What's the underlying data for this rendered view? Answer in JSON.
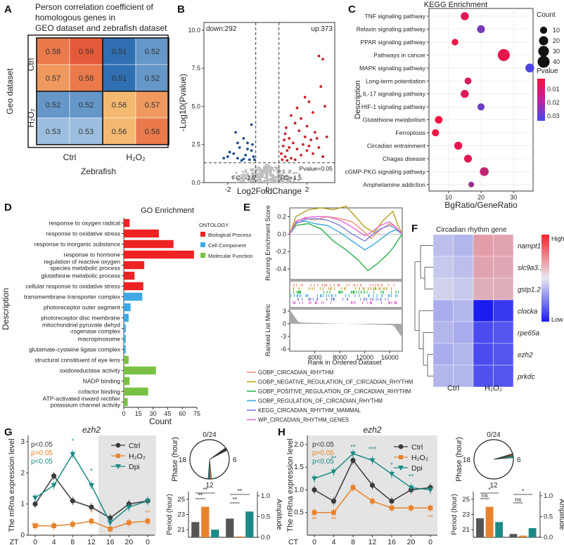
{
  "panels": {
    "A": {
      "label": "A",
      "title_lines": [
        "Person correlation coefficient of",
        "homologous genes in",
        "GEO dataset and zebrafish dataset"
      ],
      "row_group_labels": [
        "Ctrl",
        "H₂O₂"
      ],
      "col_group_labels": [
        "Ctrl",
        "H₂O₂"
      ],
      "ylabel": "Geo dataset",
      "xlabel": "Zebrafish"
    },
    "B": {
      "label": "B",
      "down_text": "down:292",
      "up_text": "up:373",
      "pvalue_text": "Pvalue=0.05",
      "fc_left_text": "FC< -1.5",
      "fc_right_text": "FC> 1.5"
    },
    "C": {
      "label": "C",
      "title": "KEGG Enrichment",
      "count_legend_title": "Count",
      "pvalue_legend_title": "Pvalue"
    },
    "D": {
      "label": "D",
      "title": "GO Enrichment",
      "legend_title": "ONTOLOGY"
    },
    "E": {
      "label": "E"
    },
    "F": {
      "label": "F",
      "title": "Circadian rhythm gene",
      "legend_high": "High",
      "legend_low": "Low"
    },
    "G": {
      "label": "G",
      "gene": "ezh2",
      "xprefix": "ZT",
      "stats": [
        "p<0.05",
        "p>0.05",
        "p<0.05"
      ]
    },
    "H": {
      "label": "H",
      "gene": "ezh2",
      "xprefix": "CT",
      "stats": [
        "p<0.05",
        "p>0.05",
        "p<0.05"
      ]
    }
  },
  "colors": {
    "volcano_up": "#c8202a",
    "volcano_down": "#1f4e8c",
    "volcano_ns": "#bdbdbd",
    "bp": "#ee2222",
    "cc": "#3fa9e6",
    "mf": "#7ac143",
    "ctrl": "#3a3a3a",
    "h2o2": "#e8822a",
    "dpi": "#1b8a86"
  },
  "chart_data": [
    {
      "panel": "A",
      "type": "heatmap",
      "rows": [
        "Ctrl",
        "Ctrl",
        "H₂O₂",
        "H₂O₂"
      ],
      "cols": [
        "Ctrl",
        "Ctrl",
        "H₂O₂",
        "H₂O₂"
      ],
      "values": [
        [
          0.58,
          0.59,
          0.51,
          0.52
        ],
        [
          0.57,
          0.58,
          0.51,
          0.52
        ],
        [
          0.52,
          0.52,
          0.56,
          0.57
        ],
        [
          0.53,
          0.53,
          0.56,
          0.58
        ]
      ],
      "cell_labels": [
        [
          "0.58",
          "0.59",
          "0.51",
          "0.52"
        ],
        [
          "0.57",
          "0.58",
          "0.51",
          "0.52"
        ],
        [
          "0.52",
          "0.52",
          "0.56",
          "0.57"
        ],
        [
          "0.53",
          "0.53",
          "0.56",
          "0.58"
        ]
      ]
    },
    {
      "panel": "B",
      "type": "scatter",
      "xlabel": "Log2FoldChange",
      "ylabel": "-Log10(Pvalue)",
      "xlim": [
        -3.2,
        3.4
      ],
      "ylim": [
        0,
        10.5
      ],
      "xticks": [
        -2,
        0,
        2
      ],
      "yticks": [
        0.0,
        2.5,
        5.0,
        7.5,
        10.0
      ],
      "ytick_labels": [
        "0.0",
        "2.5",
        "5.0",
        "7.5",
        "10.0"
      ],
      "thresholds": {
        "log2fc": [
          -0.585,
          0.585
        ],
        "neg_log10_p": 1.3
      },
      "up_points": [
        [
          2.6,
          8.3
        ],
        [
          2.8,
          8.1
        ],
        [
          2.7,
          6.3
        ],
        [
          2.1,
          5.3
        ],
        [
          1.9,
          5.6
        ],
        [
          1.7,
          4.2
        ],
        [
          2.3,
          4.6
        ],
        [
          2.9,
          5.0
        ],
        [
          1.2,
          4.4
        ],
        [
          1.4,
          3.9
        ],
        [
          2.0,
          3.7
        ],
        [
          0.9,
          3.2
        ],
        [
          1.1,
          2.9
        ],
        [
          1.6,
          3.4
        ],
        [
          2.4,
          3.3
        ],
        [
          2.5,
          2.9
        ],
        [
          3.0,
          3.0
        ],
        [
          0.8,
          2.4
        ],
        [
          1.0,
          2.1
        ],
        [
          1.3,
          2.6
        ],
        [
          1.8,
          2.5
        ],
        [
          2.2,
          2.8
        ],
        [
          0.7,
          1.9
        ],
        [
          0.9,
          1.7
        ],
        [
          1.5,
          2.2
        ],
        [
          2.0,
          2.1
        ],
        [
          2.6,
          2.3
        ],
        [
          1.2,
          1.6
        ],
        [
          0.75,
          1.5
        ],
        [
          1.7,
          1.8
        ],
        [
          2.3,
          1.9
        ],
        [
          1.0,
          1.45
        ],
        [
          1.4,
          1.5
        ],
        [
          2.8,
          1.7
        ],
        [
          0.85,
          2.8
        ],
        [
          1.9,
          3.0
        ],
        [
          1.5,
          4.9
        ],
        [
          0.95,
          3.6
        ],
        [
          2.1,
          2.4
        ],
        [
          1.1,
          2.3
        ]
      ],
      "down_points": [
        [
          -1.6,
          3.3
        ],
        [
          -1.2,
          2.9
        ],
        [
          -1.0,
          2.6
        ],
        [
          -1.4,
          2.3
        ],
        [
          -0.8,
          2.1
        ],
        [
          -1.9,
          2.0
        ],
        [
          -1.1,
          1.8
        ],
        [
          -0.7,
          1.7
        ],
        [
          -1.5,
          1.6
        ],
        [
          -2.2,
          1.6
        ],
        [
          -0.9,
          1.5
        ],
        [
          -1.3,
          1.45
        ],
        [
          -0.75,
          2.5
        ],
        [
          -1.7,
          1.9
        ],
        [
          -1.0,
          2.2
        ],
        [
          -0.8,
          3.8
        ],
        [
          -1.2,
          1.55
        ],
        [
          -2.0,
          1.7
        ],
        [
          -0.65,
          1.5
        ],
        [
          -1.5,
          2.6
        ]
      ]
    },
    {
      "panel": "C",
      "type": "scatter",
      "title": "KEGG Enrichment",
      "xlabel": "BgRatio/GeneRatio",
      "ylabel": "Description",
      "xlim": [
        4,
        36
      ],
      "xticks": [
        10,
        20,
        30
      ],
      "terms": [
        "TNF signaling pathway",
        "Relaxin signaling pathway",
        "PPAR signaling pathway",
        "Pathways in cancer",
        "MAPK signaling pathway",
        "Long-term potentiation",
        "IL-17 signaling pathway",
        "HIF-1 signaling pathway",
        "Glutathione metabolism",
        "Ferroptosis",
        "Circadian entrainment",
        "Chagas disease",
        "cGMP-PKG signaling pathway",
        "Amphetamine addiction"
      ],
      "ratio": [
        15,
        20,
        12,
        27,
        35,
        16,
        15,
        20,
        7,
        6,
        13,
        16,
        21,
        17
      ],
      "count": [
        14,
        13,
        8,
        40,
        18,
        9,
        14,
        10,
        12,
        10,
        14,
        13,
        18,
        5
      ],
      "pvalue": [
        0.006,
        0.025,
        0.004,
        0.005,
        0.032,
        0.008,
        0.007,
        0.027,
        0.003,
        0.004,
        0.005,
        0.006,
        0.012,
        0.018
      ],
      "size_legend": [
        10,
        20,
        30,
        40
      ],
      "color_legend_ticks": [
        "0.01",
        "0.02",
        "0.03"
      ]
    },
    {
      "panel": "D",
      "type": "bar",
      "title": "GO Enrichment",
      "xlabel": "Count",
      "ylabel": "Description",
      "xlim": [
        0,
        75
      ],
      "xticks": [
        0,
        15,
        30,
        45,
        60,
        75
      ],
      "terms": [
        "response to oxygen radical",
        "response to oxidative stress",
        "response to inorganic substance",
        "response to hormone",
        "regulation of reactive oxygen|species metabolic process",
        "glutathione metabolic process",
        "cellular response to oxidative stress",
        "transmembrane transporter complex",
        "photoreceptor outer segment",
        "photoreceptor disc membrane",
        "mitochondrial pyruvate dehyd|-rogenase complex",
        "macropinosome",
        "glutamate-cysteine ligase complex",
        "structural constituent of eye lens",
        "oxidoreductase activity",
        "NADP binding",
        "cofactor binding",
        "ATP-activated inward rectifier|potassium channel activity"
      ],
      "values": [
        6,
        36,
        51,
        72,
        21,
        11,
        20,
        19,
        7,
        5,
        2,
        2,
        2,
        5,
        33,
        6,
        25,
        4
      ],
      "ontology": [
        "BP",
        "BP",
        "BP",
        "BP",
        "BP",
        "BP",
        "BP",
        "CC",
        "CC",
        "CC",
        "CC",
        "CC",
        "CC",
        "MF",
        "MF",
        "MF",
        "MF",
        "MF"
      ],
      "legend": [
        {
          "key": "BP",
          "name": "Biological Process"
        },
        {
          "key": "CC",
          "name": "Cell Component"
        },
        {
          "key": "MF",
          "name": "Molecular Function"
        }
      ]
    },
    {
      "panel": "E",
      "type": "line",
      "ylabel_top": "Running Enrichment Score",
      "ylabel_bottom": "Ranked List Metric",
      "xlabel": "Rank in Ordered Dataset",
      "xlim": [
        0,
        18000
      ],
      "xticks": [
        4000,
        8000,
        12000,
        16000
      ],
      "yticks_top": [
        -0.4,
        -0.2,
        0.0,
        0.2
      ],
      "yticks_top_labels": [
        "-0.4",
        "-0.2",
        "0.0",
        "0.2"
      ],
      "yticks_bottom": [
        -6,
        -3,
        0,
        3
      ],
      "yticks_bottom_labels": [
        "-6",
        "-3",
        "0",
        "3"
      ],
      "series": [
        {
          "name": "GOBP_CIRCADIAN_RHYTHM",
          "color": "#f2907a",
          "x": [
            0,
            1000,
            2500,
            4000,
            6000,
            8000,
            10000,
            12000,
            13000,
            14500,
            16000,
            17000,
            18000
          ],
          "y": [
            0.0,
            0.15,
            0.18,
            0.16,
            0.2,
            0.18,
            0.14,
            0.02,
            -0.05,
            0.05,
            0.12,
            0.08,
            0.0
          ]
        },
        {
          "name": "GOBP_NEGATIVE_REGULATION_OF_CIRCADIAN_RHYTHM",
          "color": "#b8a01c",
          "x": [
            0,
            1000,
            3000,
            5000,
            7000,
            9000,
            10500,
            12000,
            13500,
            15000,
            16500,
            17200,
            18000
          ],
          "y": [
            0.0,
            0.2,
            0.28,
            0.3,
            0.28,
            0.32,
            0.2,
            0.08,
            0.02,
            0.16,
            0.26,
            0.12,
            0.0
          ]
        },
        {
          "name": "GOBP_POSITIVE_REGULATION_OF_CIRCADIAN_RHYTHM",
          "color": "#2bb34a",
          "x": [
            0,
            1000,
            3000,
            5000,
            7000,
            9000,
            11000,
            12500,
            14000,
            15500,
            16500,
            17500,
            18000
          ],
          "y": [
            0.0,
            0.1,
            0.12,
            0.06,
            -0.08,
            -0.18,
            -0.3,
            -0.42,
            -0.34,
            -0.24,
            -0.16,
            -0.05,
            0.0
          ]
        },
        {
          "name": "GOBP_REGULATION_OF_CIRCADIAN_RHYTHM",
          "color": "#3aa6d8",
          "x": [
            0,
            1000,
            2500,
            4000,
            6000,
            8000,
            10000,
            12000,
            13000,
            14500,
            16000,
            17000,
            18000
          ],
          "y": [
            0.0,
            0.13,
            0.15,
            0.12,
            0.1,
            0.02,
            -0.08,
            -0.18,
            -0.14,
            -0.06,
            0.02,
            0.05,
            0.0
          ]
        },
        {
          "name": "KEGG_CIRCADIAN_RHYTHM_MAMMAL",
          "color": "#7e7edb",
          "x": [
            0,
            1000,
            2500,
            4000,
            6000,
            8000,
            10000,
            12000,
            13000,
            14500,
            16000,
            17000,
            18000
          ],
          "y": [
            0.0,
            0.12,
            0.17,
            0.18,
            0.16,
            0.1,
            0.0,
            -0.08,
            -0.02,
            0.06,
            0.1,
            0.06,
            0.0
          ]
        },
        {
          "name": "WP_CIRCADIAN_RHYTHM_GENES",
          "color": "#e66bd4",
          "x": [
            0,
            1000,
            2500,
            4000,
            6000,
            8000,
            10000,
            12000,
            13000,
            14500,
            16000,
            17000,
            18000
          ],
          "y": [
            0.0,
            0.14,
            0.19,
            0.2,
            0.2,
            0.16,
            0.08,
            -0.02,
            0.02,
            0.1,
            0.14,
            0.08,
            0.0
          ]
        }
      ]
    },
    {
      "panel": "F",
      "type": "heatmap",
      "title": "Circadian rhythm gene",
      "rows": [
        "nampt1",
        "slc9a3.1",
        "gstp1.2",
        "clocka",
        "rpe65a",
        "ezh2",
        "prkdc"
      ],
      "cols": [
        "Ctrl",
        "Ctrl",
        "H₂O₂",
        "H₂O₂"
      ],
      "col_group_labels": [
        "Ctrl",
        "H₂O₂"
      ],
      "values": [
        [
          -0.15,
          -0.2,
          0.55,
          0.5
        ],
        [
          -0.1,
          -0.15,
          0.5,
          0.45
        ],
        [
          -0.05,
          -0.1,
          0.4,
          0.4
        ],
        [
          -0.25,
          -0.2,
          -1.0,
          -0.85
        ],
        [
          -0.2,
          -0.25,
          -0.75,
          -0.7
        ],
        [
          -0.25,
          -0.2,
          -0.75,
          -0.7
        ],
        [
          -0.2,
          -0.2,
          -0.72,
          -0.7
        ]
      ]
    },
    {
      "panel": "G",
      "type": "line",
      "title": "ezh2",
      "ylabel": "The mRna expression level",
      "xlabel_prefix": "ZT",
      "x": [
        0,
        4,
        8,
        12,
        16,
        20,
        24
      ],
      "xtick_labels": [
        "0",
        "4",
        "8",
        "12",
        "16",
        "20",
        "0"
      ],
      "ylim": [
        0,
        3.2
      ],
      "yticks": [
        0,
        1,
        2,
        3
      ],
      "series": [
        {
          "name": "Ctrl",
          "values": [
            1.0,
            1.9,
            1.1,
            0.9,
            0.55,
            1.0,
            1.1
          ]
        },
        {
          "name": "H₂O₂",
          "values": [
            0.3,
            0.3,
            0.35,
            0.45,
            0.2,
            0.4,
            0.45
          ]
        },
        {
          "name": "Dpi",
          "values": [
            1.2,
            1.6,
            2.6,
            1.6,
            0.4,
            0.9,
            1.1
          ]
        }
      ],
      "sig_labels": [
        "***",
        "**",
        "*",
        "*",
        "**",
        "**",
        "*",
        "*"
      ],
      "phase_label": "Phase (hour)",
      "phase_ticks": [
        "0/24",
        "6",
        "12",
        "18"
      ],
      "bars": {
        "ylabel_left": "Period (hour)",
        "ylabel_right": "Amplitude",
        "yticks_left": [
          "21",
          "23",
          "25"
        ],
        "yticks_right": [
          "0.0",
          "0.5",
          "1.0"
        ],
        "period": [
          22,
          24,
          21
        ],
        "amplitude": [
          0.45,
          0.02,
          0.62
        ],
        "sig": [
          "**",
          "**",
          "**",
          "**"
        ]
      }
    },
    {
      "panel": "H",
      "type": "line",
      "title": "ezh2",
      "ylabel": "The mRna expression level",
      "xlabel_prefix": "CT",
      "x": [
        0,
        4,
        8,
        12,
        16,
        20,
        24
      ],
      "xtick_labels": [
        "0",
        "4",
        "8",
        "12",
        "16",
        "20",
        "0"
      ],
      "ylim": [
        0,
        2.2
      ],
      "yticks": [
        0.5,
        1.0,
        1.5,
        2.0
      ],
      "ytick_labels": [
        "0.5",
        "1.0",
        "1.5",
        "2.0"
      ],
      "series": [
        {
          "name": "Ctrl",
          "values": [
            1.0,
            0.75,
            1.65,
            1.1,
            0.75,
            1.0,
            1.05
          ]
        },
        {
          "name": "H₂O₂",
          "values": [
            0.5,
            0.5,
            1.05,
            0.75,
            0.6,
            0.6,
            0.6
          ]
        },
        {
          "name": "Dpi",
          "values": [
            1.25,
            1.4,
            1.8,
            1.65,
            1.35,
            1.05,
            1.0
          ]
        }
      ],
      "sig_labels": [
        "**",
        "**",
        "**",
        "**",
        "***",
        "*",
        "**",
        "**"
      ],
      "phase_label": "Phase (hour)",
      "phase_ticks": [
        "0/24",
        "6",
        "12",
        "18"
      ],
      "bars": {
        "ylabel_left": "Period (hour)",
        "ylabel_right": "Amplitude",
        "yticks_left": [
          "21",
          "23",
          "25"
        ],
        "yticks_right": [
          "0.0",
          "0.5",
          "1.0"
        ],
        "period": [
          22.5,
          24,
          22
        ],
        "amplitude": [
          0.08,
          0.04,
          0.22
        ],
        "sig": [
          "ns",
          "*",
          "ns",
          "*"
        ]
      }
    }
  ]
}
